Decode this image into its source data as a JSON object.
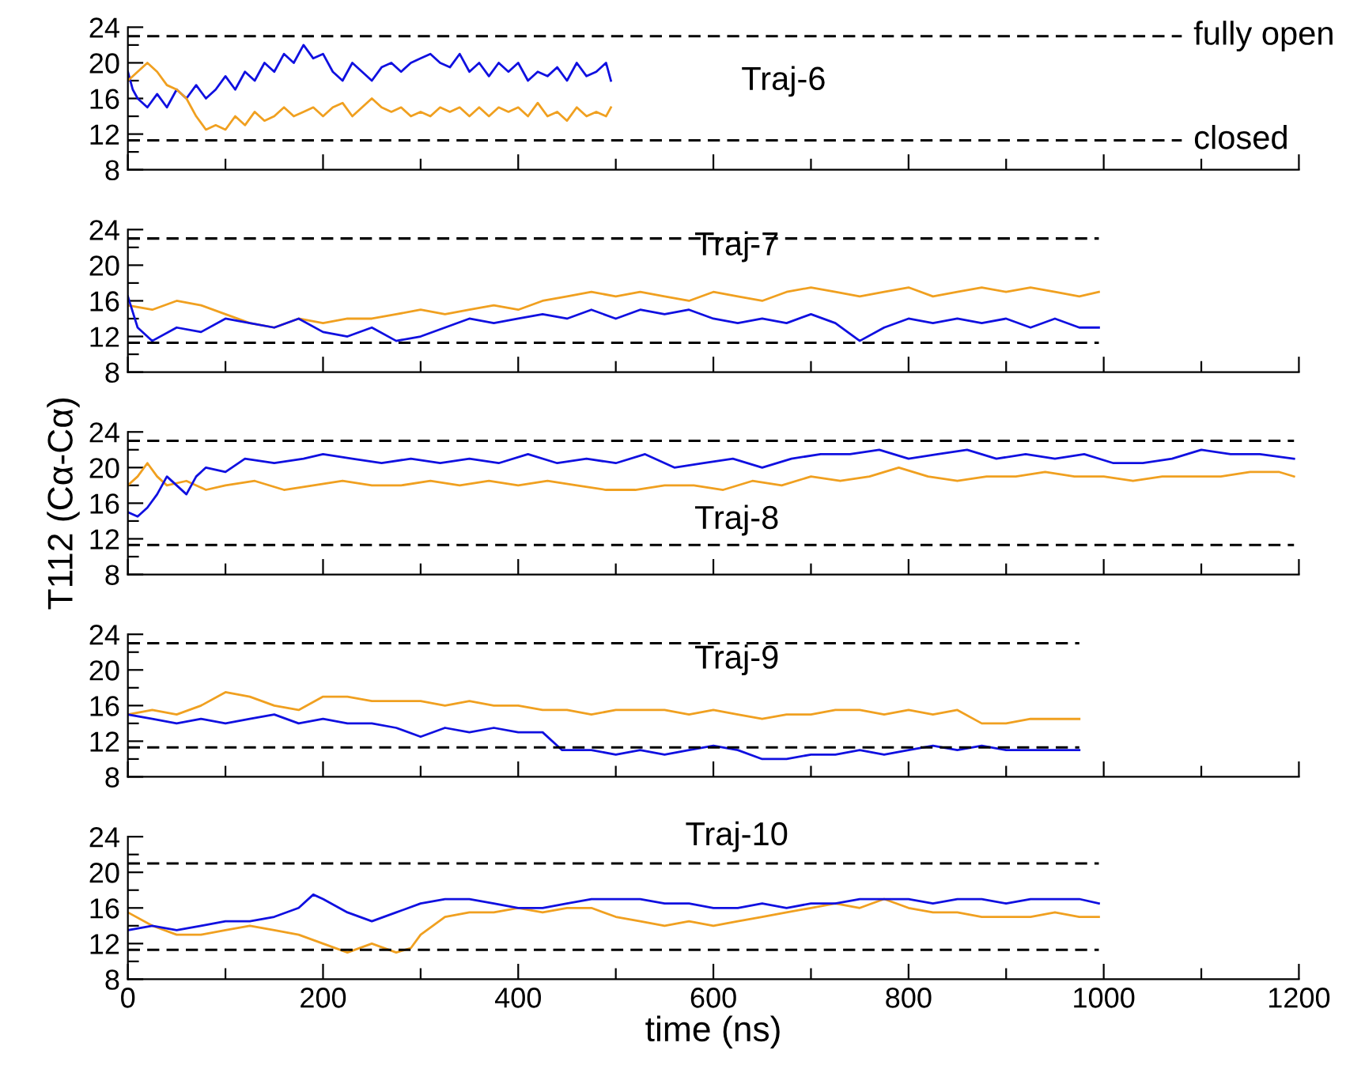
{
  "chart_data": [
    {
      "type": "line",
      "xlim": [
        0,
        1200
      ],
      "ylim": [
        8,
        24
      ],
      "tick_labels": "y",
      "grid": false,
      "line_style": "solid",
      "marker": "none",
      "xticks": [
        0,
        {
          "value": 100,
          "label": null
        },
        200,
        {
          "value": 300,
          "label": null
        },
        400,
        {
          "value": 500,
          "label": null
        },
        600,
        {
          "value": 700,
          "label": null
        },
        800,
        {
          "value": 900,
          "label": null
        },
        1000,
        {
          "value": 1100,
          "label": null
        },
        1200
      ],
      "yticks": [
        8,
        {
          "value": 10,
          "label": null
        },
        12,
        {
          "value": 14,
          "label": null
        },
        16,
        {
          "value": 18,
          "label": null
        },
        20,
        {
          "value": 22,
          "label": null
        },
        24
      ],
      "annotations": [
        "Traj-6"
      ],
      "ref_lines": [
        {
          "axis": "y",
          "value": 23,
          "label": "fully open",
          "color": "#000000",
          "line_style": "dashed"
        },
        {
          "axis": "y",
          "value": 11.3,
          "label": "closed",
          "color": "#000000",
          "line_style": "dashed"
        }
      ],
      "series": [
        {
          "color": "#1010e0",
          "x": [
            0,
            5,
            10,
            20,
            30,
            40,
            50,
            60,
            70,
            80,
            90,
            100,
            110,
            120,
            130,
            140,
            150,
            160,
            170,
            180,
            190,
            200,
            210,
            220,
            230,
            240,
            250,
            260,
            270,
            280,
            290,
            300,
            310,
            320,
            330,
            340,
            350,
            360,
            370,
            380,
            390,
            400,
            410,
            420,
            430,
            440,
            450,
            460,
            470,
            480,
            490,
            495
          ],
          "values": [
            19,
            17,
            16,
            15,
            16.5,
            15,
            17,
            16,
            17.5,
            16,
            17,
            18.5,
            17,
            19,
            18,
            20,
            19,
            21,
            20,
            22,
            20.5,
            21,
            19,
            18,
            20,
            19,
            18,
            19.5,
            20,
            19,
            20,
            20.5,
            21,
            20,
            19.5,
            21,
            19,
            20,
            18.5,
            20,
            19,
            20,
            18,
            19,
            18.5,
            19.5,
            18,
            20,
            18.5,
            19,
            20,
            18
          ]
        },
        {
          "color": "#f0a020",
          "x": [
            0,
            10,
            20,
            30,
            40,
            50,
            60,
            70,
            80,
            90,
            100,
            110,
            120,
            130,
            140,
            150,
            160,
            170,
            180,
            190,
            200,
            210,
            220,
            230,
            240,
            250,
            260,
            270,
            280,
            290,
            300,
            310,
            320,
            330,
            340,
            350,
            360,
            370,
            380,
            390,
            400,
            410,
            420,
            430,
            440,
            450,
            460,
            470,
            480,
            490,
            495
          ],
          "values": [
            18,
            19,
            20,
            19,
            17.5,
            17,
            16,
            14,
            12.5,
            13,
            12.5,
            14,
            13,
            14.5,
            13.5,
            14,
            15,
            14,
            14.5,
            15,
            14,
            15,
            15.5,
            14,
            15,
            16,
            15,
            14.5,
            15,
            14,
            14.5,
            14,
            15,
            14.5,
            15,
            14,
            15,
            14,
            15,
            14.5,
            15,
            14,
            15.5,
            14,
            14.5,
            13.5,
            15,
            14,
            14.5,
            14,
            15
          ]
        }
      ]
    },
    {
      "type": "line",
      "xlim": [
        0,
        1200
      ],
      "ylim": [
        8,
        24
      ],
      "tick_labels": "y",
      "grid": false,
      "line_style": "solid",
      "marker": "none",
      "xticks": [
        0,
        {
          "value": 100,
          "label": null
        },
        200,
        {
          "value": 300,
          "label": null
        },
        400,
        {
          "value": 500,
          "label": null
        },
        600,
        {
          "value": 700,
          "label": null
        },
        800,
        {
          "value": 900,
          "label": null
        },
        1000,
        {
          "value": 1100,
          "label": null
        },
        1200
      ],
      "yticks": [
        8,
        {
          "value": 10,
          "label": null
        },
        12,
        {
          "value": 14,
          "label": null
        },
        16,
        {
          "value": 18,
          "label": null
        },
        20,
        {
          "value": 22,
          "label": null
        },
        24
      ],
      "annotations": [
        "Traj-7"
      ],
      "ref_lines": [
        {
          "axis": "y",
          "value": 23,
          "color": "#000000",
          "line_style": "dashed"
        },
        {
          "axis": "y",
          "value": 11.3,
          "color": "#000000",
          "line_style": "dashed"
        }
      ],
      "series": [
        {
          "color": "#f0a020",
          "x": [
            0,
            25,
            50,
            75,
            100,
            125,
            150,
            175,
            200,
            225,
            250,
            275,
            300,
            325,
            350,
            375,
            400,
            425,
            450,
            475,
            500,
            525,
            550,
            575,
            600,
            625,
            650,
            675,
            700,
            725,
            750,
            775,
            800,
            825,
            850,
            875,
            900,
            925,
            950,
            975,
            995
          ],
          "values": [
            15.5,
            15,
            16,
            15.5,
            14.5,
            13.5,
            13,
            14,
            13.5,
            14,
            14,
            14.5,
            15,
            14.5,
            15,
            15.5,
            15,
            16,
            16.5,
            17,
            16.5,
            17,
            16.5,
            16,
            17,
            16.5,
            16,
            17,
            17.5,
            17,
            16.5,
            17,
            17.5,
            16.5,
            17,
            17.5,
            17,
            17.5,
            17,
            16.5,
            17
          ]
        },
        {
          "color": "#1010e0",
          "x": [
            0,
            10,
            25,
            50,
            75,
            100,
            125,
            150,
            175,
            200,
            225,
            250,
            275,
            300,
            325,
            350,
            375,
            400,
            425,
            450,
            475,
            500,
            525,
            550,
            575,
            600,
            625,
            650,
            675,
            700,
            725,
            750,
            775,
            800,
            825,
            850,
            875,
            900,
            925,
            950,
            975,
            995
          ],
          "values": [
            16.5,
            13,
            11.5,
            13,
            12.5,
            14,
            13.5,
            13,
            14,
            12.5,
            12,
            13,
            11.5,
            12,
            13,
            14,
            13.5,
            14,
            14.5,
            14,
            15,
            14,
            15,
            14.5,
            15,
            14,
            13.5,
            14,
            13.5,
            14.5,
            13.5,
            11.5,
            13,
            14,
            13.5,
            14,
            13.5,
            14,
            13,
            14,
            13,
            13
          ]
        }
      ]
    },
    {
      "type": "line",
      "xlim": [
        0,
        1200
      ],
      "ylim": [
        8,
        24
      ],
      "tick_labels": "y",
      "grid": false,
      "line_style": "solid",
      "marker": "none",
      "ylabel": "T112 (Cα-Cα)",
      "xticks": [
        0,
        {
          "value": 100,
          "label": null
        },
        200,
        {
          "value": 300,
          "label": null
        },
        400,
        {
          "value": 500,
          "label": null
        },
        600,
        {
          "value": 700,
          "label": null
        },
        800,
        {
          "value": 900,
          "label": null
        },
        1000,
        {
          "value": 1100,
          "label": null
        },
        1200
      ],
      "yticks": [
        8,
        {
          "value": 10,
          "label": null
        },
        12,
        {
          "value": 14,
          "label": null
        },
        16,
        {
          "value": 18,
          "label": null
        },
        20,
        {
          "value": 22,
          "label": null
        },
        24
      ],
      "annotations": [
        "Traj-8"
      ],
      "ref_lines": [
        {
          "axis": "y",
          "value": 23,
          "color": "#000000",
          "line_style": "dashed"
        },
        {
          "axis": "y",
          "value": 11.3,
          "color": "#000000",
          "line_style": "dashed"
        }
      ],
      "series": [
        {
          "color": "#f0a020",
          "x": [
            0,
            10,
            20,
            30,
            40,
            60,
            80,
            100,
            130,
            160,
            190,
            220,
            250,
            280,
            310,
            340,
            370,
            400,
            430,
            460,
            490,
            520,
            550,
            580,
            610,
            640,
            670,
            700,
            730,
            760,
            790,
            820,
            850,
            880,
            910,
            940,
            970,
            1000,
            1030,
            1060,
            1090,
            1120,
            1150,
            1180,
            1195
          ],
          "values": [
            18,
            19,
            20.5,
            19,
            18,
            18.5,
            17.5,
            18,
            18.5,
            17.5,
            18,
            18.5,
            18,
            18,
            18.5,
            18,
            18.5,
            18,
            18.5,
            18,
            17.5,
            17.5,
            18,
            18,
            17.5,
            18.5,
            18,
            19,
            18.5,
            19,
            20,
            19,
            18.5,
            19,
            19,
            19.5,
            19,
            19,
            18.5,
            19,
            19,
            19,
            19.5,
            19.5,
            19
          ]
        },
        {
          "color": "#1010e0",
          "x": [
            0,
            10,
            20,
            30,
            40,
            50,
            60,
            70,
            80,
            100,
            120,
            150,
            180,
            200,
            230,
            260,
            290,
            320,
            350,
            380,
            410,
            440,
            470,
            500,
            530,
            560,
            590,
            620,
            650,
            680,
            710,
            740,
            770,
            800,
            830,
            860,
            890,
            920,
            950,
            980,
            1010,
            1040,
            1070,
            1100,
            1130,
            1160,
            1195
          ],
          "values": [
            15,
            14.5,
            15.5,
            17,
            19,
            18,
            17,
            19,
            20,
            19.5,
            21,
            20.5,
            21,
            21.5,
            21,
            20.5,
            21,
            20.5,
            21,
            20.5,
            21.5,
            20.5,
            21,
            20.5,
            21.5,
            20,
            20.5,
            21,
            20,
            21,
            21.5,
            21.5,
            22,
            21,
            21.5,
            22,
            21,
            21.5,
            21,
            21.5,
            20.5,
            20.5,
            21,
            22,
            21.5,
            21.5,
            21
          ]
        }
      ]
    },
    {
      "type": "line",
      "xlim": [
        0,
        1200
      ],
      "ylim": [
        8,
        24
      ],
      "tick_labels": "y",
      "grid": false,
      "line_style": "solid",
      "marker": "none",
      "xticks": [
        0,
        {
          "value": 100,
          "label": null
        },
        200,
        {
          "value": 300,
          "label": null
        },
        400,
        {
          "value": 500,
          "label": null
        },
        600,
        {
          "value": 700,
          "label": null
        },
        800,
        {
          "value": 900,
          "label": null
        },
        1000,
        {
          "value": 1100,
          "label": null
        },
        1200
      ],
      "yticks": [
        8,
        {
          "value": 10,
          "label": null
        },
        12,
        {
          "value": 14,
          "label": null
        },
        16,
        {
          "value": 18,
          "label": null
        },
        20,
        {
          "value": 22,
          "label": null
        },
        24
      ],
      "annotations": [
        "Traj-9"
      ],
      "ref_lines": [
        {
          "axis": "y",
          "value": 23,
          "color": "#000000",
          "line_style": "dashed"
        },
        {
          "axis": "y",
          "value": 11.3,
          "color": "#000000",
          "line_style": "dashed"
        }
      ],
      "series": [
        {
          "color": "#f0a020",
          "x": [
            0,
            25,
            50,
            75,
            100,
            125,
            150,
            175,
            200,
            225,
            250,
            275,
            300,
            325,
            350,
            375,
            400,
            425,
            450,
            475,
            500,
            525,
            550,
            575,
            600,
            625,
            650,
            675,
            700,
            725,
            750,
            775,
            800,
            825,
            850,
            875,
            900,
            925,
            950,
            975
          ],
          "values": [
            15,
            15.5,
            15,
            16,
            17.5,
            17,
            16,
            15.5,
            17,
            17,
            16.5,
            16.5,
            16.5,
            16,
            16.5,
            16,
            16,
            15.5,
            15.5,
            15,
            15.5,
            15.5,
            15.5,
            15,
            15.5,
            15,
            14.5,
            15,
            15,
            15.5,
            15.5,
            15,
            15.5,
            15,
            15.5,
            14,
            14,
            14.5,
            14.5,
            14.5
          ]
        },
        {
          "color": "#1010e0",
          "x": [
            0,
            25,
            50,
            75,
            100,
            125,
            150,
            175,
            200,
            225,
            250,
            275,
            300,
            325,
            350,
            375,
            400,
            425,
            445,
            475,
            500,
            525,
            550,
            575,
            600,
            625,
            650,
            675,
            700,
            725,
            750,
            775,
            800,
            825,
            850,
            875,
            900,
            925,
            950,
            975
          ],
          "values": [
            15,
            14.5,
            14,
            14.5,
            14,
            14.5,
            15,
            14,
            14.5,
            14,
            14,
            13.5,
            12.5,
            13.5,
            13,
            13.5,
            13,
            13,
            11,
            11,
            10.5,
            11,
            10.5,
            11,
            11.5,
            11,
            10,
            10,
            10.5,
            10.5,
            11,
            10.5,
            11,
            11.5,
            11,
            11.5,
            11,
            11,
            11,
            11
          ]
        }
      ]
    },
    {
      "type": "line",
      "xlim": [
        0,
        1200
      ],
      "ylim": [
        8,
        24
      ],
      "grid": false,
      "line_style": "solid",
      "marker": "none",
      "xlabel": "time (ns)",
      "xticks": [
        0,
        {
          "value": 100,
          "label": null
        },
        200,
        {
          "value": 300,
          "label": null
        },
        400,
        {
          "value": 500,
          "label": null
        },
        600,
        {
          "value": 700,
          "label": null
        },
        800,
        {
          "value": 900,
          "label": null
        },
        1000,
        {
          "value": 1100,
          "label": null
        },
        1200
      ],
      "yticks": [
        8,
        {
          "value": 10,
          "label": null
        },
        12,
        {
          "value": 14,
          "label": null
        },
        16,
        {
          "value": 18,
          "label": null
        },
        20,
        {
          "value": 22,
          "label": null
        },
        24
      ],
      "annotations": [
        "Traj-10"
      ],
      "ref_lines": [
        {
          "axis": "y",
          "value": 21,
          "color": "#000000",
          "line_style": "dashed"
        },
        {
          "axis": "y",
          "value": 11.3,
          "color": "#000000",
          "line_style": "dashed"
        }
      ],
      "series": [
        {
          "color": "#f0a020",
          "x": [
            0,
            25,
            50,
            75,
            100,
            125,
            150,
            175,
            200,
            225,
            250,
            275,
            290,
            300,
            325,
            350,
            375,
            400,
            425,
            450,
            475,
            500,
            525,
            550,
            575,
            600,
            625,
            650,
            675,
            700,
            725,
            750,
            775,
            800,
            825,
            850,
            875,
            900,
            925,
            950,
            975,
            995
          ],
          "values": [
            15.5,
            14,
            13,
            13,
            13.5,
            14,
            13.5,
            13,
            12,
            11,
            12,
            11,
            11.5,
            13,
            15,
            15.5,
            15.5,
            16,
            15.5,
            16,
            16,
            15,
            14.5,
            14,
            14.5,
            14,
            14.5,
            15,
            15.5,
            16,
            16.5,
            16,
            17,
            16,
            15.5,
            15.5,
            15,
            15,
            15,
            15.5,
            15,
            15
          ]
        },
        {
          "color": "#1010e0",
          "x": [
            0,
            25,
            50,
            75,
            100,
            125,
            150,
            175,
            190,
            200,
            225,
            250,
            275,
            300,
            325,
            350,
            375,
            400,
            425,
            450,
            475,
            500,
            525,
            550,
            575,
            600,
            625,
            650,
            675,
            700,
            725,
            750,
            775,
            800,
            825,
            850,
            875,
            900,
            925,
            950,
            975,
            995
          ],
          "values": [
            13.5,
            14,
            13.5,
            14,
            14.5,
            14.5,
            15,
            16,
            17.5,
            17,
            15.5,
            14.5,
            15.5,
            16.5,
            17,
            17,
            16.5,
            16,
            16,
            16.5,
            17,
            17,
            17,
            16.5,
            16.5,
            16,
            16,
            16.5,
            16,
            16.5,
            16.5,
            17,
            17,
            17,
            16.5,
            17,
            17,
            16.5,
            17,
            17,
            17,
            16.5
          ]
        }
      ]
    }
  ]
}
